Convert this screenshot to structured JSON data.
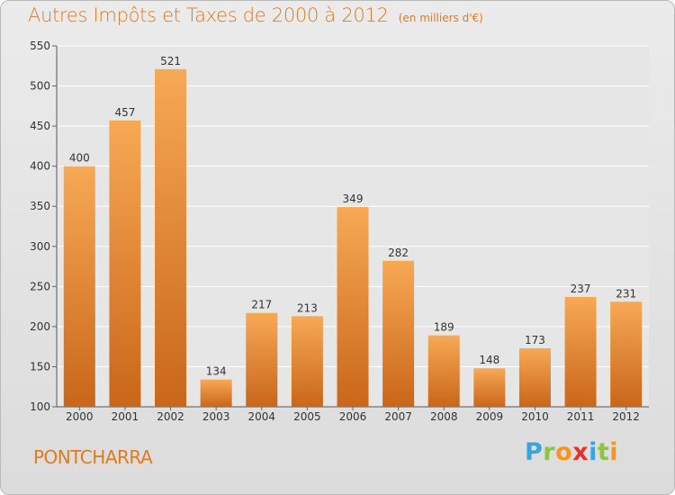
{
  "title": "Autres Impôts et Taxes de 2000 à 2012",
  "unit_note": "(en milliers d'€)",
  "town": "PONTCHARRA",
  "logo": {
    "letters": [
      "P",
      "r",
      "o",
      "x",
      "i",
      "t",
      "i"
    ],
    "colors": [
      "#3aa5dc",
      "#8cc63f",
      "#f7941d",
      "#e6332a",
      "#3aa5dc",
      "#8cc63f",
      "#f7941d"
    ]
  },
  "colors": {
    "title": "#e07a1f",
    "bar_light": "#f7a955",
    "bar_dark": "#c9661a",
    "plot_bg": "#e6e6e6",
    "grid": "#ffffff"
  },
  "chart_data": {
    "type": "bar",
    "categories": [
      "2000",
      "2001",
      "2002",
      "2003",
      "2004",
      "2005",
      "2006",
      "2007",
      "2008",
      "2009",
      "2010",
      "2011",
      "2012"
    ],
    "values": [
      400,
      457,
      521,
      134,
      217,
      213,
      349,
      282,
      189,
      148,
      173,
      237,
      231
    ],
    "title": "Autres Impôts et Taxes de 2000 à 2012",
    "subtitle": "(en milliers d'€)",
    "ylim": [
      100,
      550
    ],
    "yticks": [
      100,
      150,
      200,
      250,
      300,
      350,
      400,
      450,
      500,
      550
    ],
    "grid": true
  }
}
